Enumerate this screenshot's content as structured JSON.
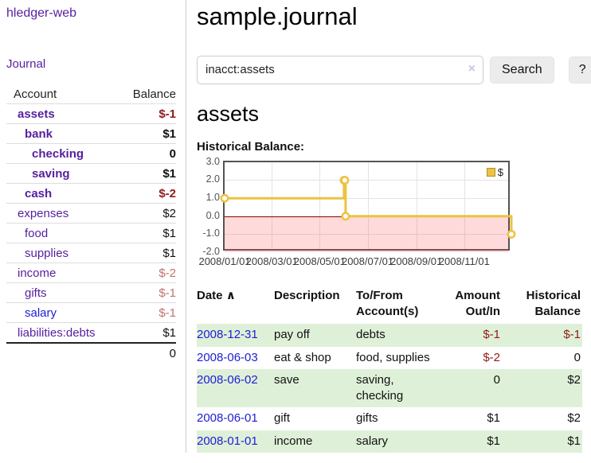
{
  "app": {
    "title": "hledger-web"
  },
  "sidebar": {
    "journal_link": "Journal",
    "accounts": {
      "col_account": "Account",
      "col_balance": "Balance",
      "rows": [
        {
          "name": "assets",
          "balance": "$-1"
        },
        {
          "name": "bank",
          "balance": "$1"
        },
        {
          "name": "checking",
          "balance": "0"
        },
        {
          "name": "saving",
          "balance": "$1"
        },
        {
          "name": "cash",
          "balance": "$-2"
        },
        {
          "name": "expenses",
          "balance": "$2"
        },
        {
          "name": "food",
          "balance": "$1"
        },
        {
          "name": "supplies",
          "balance": "$1"
        },
        {
          "name": "income",
          "balance": "$-2"
        },
        {
          "name": "gifts",
          "balance": "$-1"
        },
        {
          "name": "salary",
          "balance": "$-1"
        },
        {
          "name": "liabilities:debts",
          "balance": "$1"
        }
      ],
      "total": "0"
    }
  },
  "main": {
    "title": "sample.journal",
    "search": {
      "value": "inacct:assets",
      "clear_icon": "×",
      "search_label": "Search",
      "help_label": "?"
    },
    "heading": "assets",
    "chart_label": "Historical Balance:"
  },
  "chart_data": {
    "type": "line",
    "step": true,
    "title": "Historical Balance",
    "series": [
      {
        "name": "$",
        "color": "#edc240",
        "points": [
          [
            "2008-01-01",
            1
          ],
          [
            "2008-06-01",
            2
          ],
          [
            "2008-06-02",
            2
          ],
          [
            "2008-06-03",
            0
          ],
          [
            "2008-12-31",
            -1
          ]
        ]
      }
    ],
    "x_range": [
      "2008-01-01",
      "2008-12-31"
    ],
    "ylim": [
      -2,
      3
    ],
    "yticks": [
      3.0,
      2.0,
      1.0,
      0.0,
      -1.0,
      -2.0
    ],
    "xticks": [
      "2008/01/01",
      "2008/03/01",
      "2008/05/01",
      "2008/07/01",
      "2008/09/01",
      "2008/11/01"
    ],
    "grid": true,
    "legend_position": "top-right",
    "negative_region_color": "rgba(255,85,85,0.22)",
    "zero_line_color": "#8b0000"
  },
  "register": {
    "headers": {
      "date": "Date",
      "description": "Description",
      "tofrom": "To/From Account(s)",
      "amount": "Amount Out/In",
      "balance": "Historical Balance"
    },
    "sort_icon": "∧",
    "rows": [
      {
        "date": "2008-12-31",
        "description": "pay off",
        "tofrom": "debts",
        "amount": "$-1",
        "balance": "$-1"
      },
      {
        "date": "2008-06-03",
        "description": "eat & shop",
        "tofrom": "food, supplies",
        "amount": "$-2",
        "balance": "0"
      },
      {
        "date": "2008-06-02",
        "description": "save",
        "tofrom": "saving, checking",
        "amount": "0",
        "balance": "$2"
      },
      {
        "date": "2008-06-01",
        "description": "gift",
        "tofrom": "gifts",
        "amount": "$1",
        "balance": "$2"
      },
      {
        "date": "2008-01-01",
        "description": "income",
        "tofrom": "salary",
        "amount": "$1",
        "balance": "$1"
      }
    ]
  }
}
